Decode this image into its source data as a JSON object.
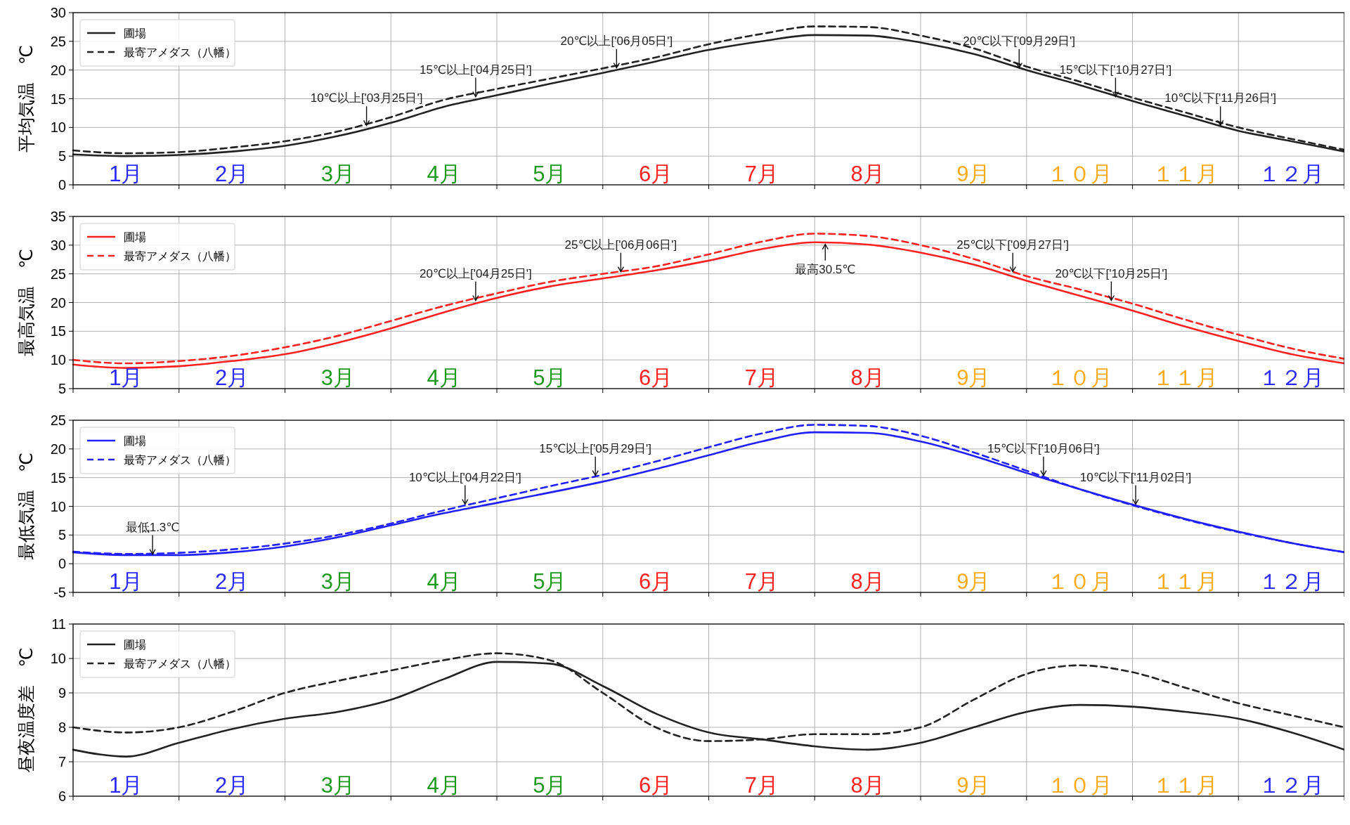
{
  "chart_data": [
    {
      "type": "line",
      "ylabel": "平均気温　℃",
      "xlim": [
        0,
        12
      ],
      "ylim": [
        0,
        30
      ],
      "yticks": [
        0,
        5,
        10,
        15,
        20,
        25,
        30
      ],
      "xticks": [
        {
          "value": 0,
          "label": null
        },
        {
          "value": 0.5,
          "label": "1月"
        },
        {
          "value": 1,
          "label": null
        },
        {
          "value": 1.5,
          "label": "2月"
        },
        {
          "value": 2,
          "label": null
        },
        {
          "value": 2.5,
          "label": "3月"
        },
        {
          "value": 3,
          "label": null
        },
        {
          "value": 3.5,
          "label": "4月"
        },
        {
          "value": 4,
          "label": null
        },
        {
          "value": 4.5,
          "label": "5月"
        },
        {
          "value": 5,
          "label": null
        },
        {
          "value": 5.5,
          "label": "6月"
        },
        {
          "value": 6,
          "label": null
        },
        {
          "value": 6.5,
          "label": "7月"
        },
        {
          "value": 7,
          "label": null
        },
        {
          "value": 7.5,
          "label": "8月"
        },
        {
          "value": 8,
          "label": null
        },
        {
          "value": 8.5,
          "label": "9月"
        },
        {
          "value": 9,
          "label": null
        },
        {
          "value": 9.5,
          "label": "１０月"
        },
        {
          "value": 10,
          "label": null
        },
        {
          "value": 10.5,
          "label": "１１月"
        },
        {
          "value": 11,
          "label": null
        },
        {
          "value": 11.5,
          "label": "１２月"
        },
        {
          "value": 12,
          "label": null
        }
      ],
      "x": [
        0,
        0.5,
        1,
        1.5,
        2,
        2.5,
        3,
        3.5,
        4,
        4.5,
        5,
        5.5,
        6,
        6.5,
        7,
        7.5,
        8,
        8.5,
        9,
        9.5,
        10,
        10.5,
        11,
        11.5,
        12
      ],
      "grid": true,
      "legend": "top left",
      "series": [
        {
          "name": "圃場",
          "color": "#222222",
          "line_style": "solid",
          "values": [
            5.3,
            5.0,
            5.2,
            5.8,
            6.8,
            8.5,
            10.8,
            13.6,
            15.6,
            17.6,
            19.5,
            21.5,
            23.5,
            25.0,
            26.1,
            26.0,
            24.8,
            22.8,
            20.0,
            17.4,
            14.6,
            12.0,
            9.4,
            7.6,
            5.8
          ]
        },
        {
          "name": "最寄アメダス（八幡）",
          "color": "#222222",
          "line_style": "dashed",
          "values": [
            6.0,
            5.5,
            5.7,
            6.5,
            7.6,
            9.3,
            11.8,
            14.8,
            16.7,
            18.5,
            20.3,
            22.2,
            24.5,
            26.3,
            27.6,
            27.5,
            26.0,
            23.8,
            20.6,
            18.0,
            15.2,
            12.6,
            10.0,
            8.0,
            6.1
          ]
        }
      ],
      "annotations": [
        {
          "text": "10℃以上['03月25日']",
          "x": 2.77,
          "y": 10
        },
        {
          "text": "15℃以上['04月25日']",
          "x": 3.8,
          "y": 15
        },
        {
          "text": "20℃以上['06月05日']",
          "x": 5.13,
          "y": 20
        },
        {
          "text": "20℃以下['09月29日']",
          "x": 8.93,
          "y": 20
        },
        {
          "text": "15℃以下['10月27日']",
          "x": 9.84,
          "y": 15
        },
        {
          "text": "10℃以下['11月26日']",
          "x": 10.83,
          "y": 10
        }
      ]
    },
    {
      "type": "line",
      "ylabel": "最高気温　℃",
      "xlim": [
        0,
        12
      ],
      "ylim": [
        5,
        35
      ],
      "yticks": [
        5,
        10,
        15,
        20,
        25,
        30,
        35
      ],
      "xticks": [
        {
          "value": 0,
          "label": null
        },
        {
          "value": 0.5,
          "label": "1月"
        },
        {
          "value": 1,
          "label": null
        },
        {
          "value": 1.5,
          "label": "2月"
        },
        {
          "value": 2,
          "label": null
        },
        {
          "value": 2.5,
          "label": "3月"
        },
        {
          "value": 3,
          "label": null
        },
        {
          "value": 3.5,
          "label": "4月"
        },
        {
          "value": 4,
          "label": null
        },
        {
          "value": 4.5,
          "label": "5月"
        },
        {
          "value": 5,
          "label": null
        },
        {
          "value": 5.5,
          "label": "6月"
        },
        {
          "value": 6,
          "label": null
        },
        {
          "value": 6.5,
          "label": "7月"
        },
        {
          "value": 7,
          "label": null
        },
        {
          "value": 7.5,
          "label": "8月"
        },
        {
          "value": 8,
          "label": null
        },
        {
          "value": 8.5,
          "label": "9月"
        },
        {
          "value": 9,
          "label": null
        },
        {
          "value": 9.5,
          "label": "１０月"
        },
        {
          "value": 10,
          "label": null
        },
        {
          "value": 10.5,
          "label": "１１月"
        },
        {
          "value": 11,
          "label": null
        },
        {
          "value": 11.5,
          "label": "１２月"
        },
        {
          "value": 12,
          "label": null
        }
      ],
      "x": [
        0,
        0.5,
        1,
        1.5,
        2,
        2.5,
        3,
        3.5,
        4,
        4.5,
        5,
        5.5,
        6,
        6.5,
        7,
        7.5,
        8,
        8.5,
        9,
        9.5,
        10,
        10.5,
        11,
        11.5,
        12
      ],
      "grid": true,
      "legend": "top left",
      "series": [
        {
          "name": "圃場",
          "color": "#ff2020",
          "line_style": "solid",
          "values": [
            9.2,
            8.6,
            8.9,
            9.8,
            11.0,
            13.0,
            15.5,
            18.3,
            20.8,
            22.8,
            24.2,
            25.6,
            27.3,
            29.3,
            30.5,
            30.1,
            28.7,
            26.6,
            23.8,
            21.2,
            18.6,
            15.8,
            13.3,
            11.0,
            9.4
          ]
        },
        {
          "name": "最寄アメダス（八幡）",
          "color": "#ff2020",
          "line_style": "dashed",
          "values": [
            10.0,
            9.4,
            9.8,
            10.7,
            12.2,
            14.2,
            16.8,
            19.4,
            21.6,
            23.6,
            25.0,
            26.3,
            28.4,
            30.6,
            32.0,
            31.6,
            30.0,
            27.6,
            24.6,
            22.3,
            19.8,
            17.0,
            14.4,
            12.0,
            10.2
          ]
        }
      ],
      "annotations": [
        {
          "text": "20℃以上['04月25日']",
          "x": 3.8,
          "y": 20
        },
        {
          "text": "25℃以上['06月06日']",
          "x": 5.17,
          "y": 25
        },
        {
          "text": "最高30.5℃",
          "x": 7.1,
          "y": 30.5
        },
        {
          "text": "25℃以下['09月27日']",
          "x": 8.87,
          "y": 25
        },
        {
          "text": "20℃以下['10月25日']",
          "x": 9.8,
          "y": 20
        }
      ]
    },
    {
      "type": "line",
      "ylabel": "最低気温　℃",
      "xlim": [
        0,
        12
      ],
      "ylim": [
        -5,
        25
      ],
      "yticks": [
        -5,
        0,
        5,
        10,
        15,
        20,
        25
      ],
      "xticks": [
        {
          "value": 0,
          "label": null
        },
        {
          "value": 0.5,
          "label": "1月"
        },
        {
          "value": 1,
          "label": null
        },
        {
          "value": 1.5,
          "label": "2月"
        },
        {
          "value": 2,
          "label": null
        },
        {
          "value": 2.5,
          "label": "3月"
        },
        {
          "value": 3,
          "label": null
        },
        {
          "value": 3.5,
          "label": "4月"
        },
        {
          "value": 4,
          "label": null
        },
        {
          "value": 4.5,
          "label": "5月"
        },
        {
          "value": 5,
          "label": null
        },
        {
          "value": 5.5,
          "label": "6月"
        },
        {
          "value": 6,
          "label": null
        },
        {
          "value": 6.5,
          "label": "7月"
        },
        {
          "value": 7,
          "label": null
        },
        {
          "value": 7.5,
          "label": "8月"
        },
        {
          "value": 8,
          "label": null
        },
        {
          "value": 8.5,
          "label": "9月"
        },
        {
          "value": 9,
          "label": null
        },
        {
          "value": 9.5,
          "label": "１０月"
        },
        {
          "value": 10,
          "label": null
        },
        {
          "value": 10.5,
          "label": "１１月"
        },
        {
          "value": 11,
          "label": null
        },
        {
          "value": 11.5,
          "label": "１２月"
        },
        {
          "value": 12,
          "label": null
        }
      ],
      "x": [
        0,
        0.5,
        1,
        1.5,
        2,
        2.5,
        3,
        3.5,
        4,
        4.5,
        5,
        5.5,
        6,
        6.5,
        7,
        7.5,
        8,
        8.5,
        9,
        9.5,
        10,
        10.5,
        11,
        11.5,
        12
      ],
      "grid": true,
      "legend": "top left",
      "series": [
        {
          "name": "圃場",
          "color": "#2020ff",
          "line_style": "solid",
          "values": [
            2.0,
            1.5,
            1.5,
            2.0,
            3.0,
            4.6,
            6.7,
            8.8,
            10.6,
            12.4,
            14.3,
            16.5,
            18.9,
            21.3,
            22.9,
            22.8,
            21.3,
            18.8,
            15.8,
            13.0,
            10.3,
            7.8,
            5.6,
            3.6,
            2.0
          ]
        },
        {
          "name": "最寄アメダス（八幡）",
          "color": "#2020ff",
          "line_style": "dashed",
          "values": [
            2.1,
            1.7,
            1.9,
            2.5,
            3.5,
            5.0,
            7.0,
            9.3,
            11.4,
            13.5,
            15.5,
            17.8,
            20.3,
            22.7,
            24.2,
            24.0,
            22.3,
            19.4,
            16.2,
            13.0,
            10.2,
            7.7,
            5.5,
            3.6,
            2.0
          ]
        }
      ],
      "annotations": [
        {
          "text": "最低1.3℃",
          "x": 0.75,
          "y": 1.3
        },
        {
          "text": "10℃以上['04月22日']",
          "x": 3.7,
          "y": 10
        },
        {
          "text": "15℃以上['05月29日']",
          "x": 4.93,
          "y": 15
        },
        {
          "text": "15℃以下['10月06日']",
          "x": 9.16,
          "y": 15
        },
        {
          "text": "10℃以下['11月02日']",
          "x": 10.03,
          "y": 10
        }
      ]
    },
    {
      "type": "line",
      "ylabel": "昼夜温度差　℃",
      "xlim": [
        0,
        12
      ],
      "ylim": [
        6,
        11
      ],
      "yticks": [
        6,
        7,
        8,
        9,
        10,
        11
      ],
      "xticks": [
        {
          "value": 0,
          "label": null
        },
        {
          "value": 0.5,
          "label": "1月"
        },
        {
          "value": 1,
          "label": null
        },
        {
          "value": 1.5,
          "label": "2月"
        },
        {
          "value": 2,
          "label": null
        },
        {
          "value": 2.5,
          "label": "3月"
        },
        {
          "value": 3,
          "label": null
        },
        {
          "value": 3.5,
          "label": "4月"
        },
        {
          "value": 4,
          "label": null
        },
        {
          "value": 4.5,
          "label": "5月"
        },
        {
          "value": 5,
          "label": null
        },
        {
          "value": 5.5,
          "label": "6月"
        },
        {
          "value": 6,
          "label": null
        },
        {
          "value": 6.5,
          "label": "7月"
        },
        {
          "value": 7,
          "label": null
        },
        {
          "value": 7.5,
          "label": "8月"
        },
        {
          "value": 8,
          "label": null
        },
        {
          "value": 8.5,
          "label": "9月"
        },
        {
          "value": 9,
          "label": null
        },
        {
          "value": 9.5,
          "label": "１０月"
        },
        {
          "value": 10,
          "label": null
        },
        {
          "value": 10.5,
          "label": "１１月"
        },
        {
          "value": 11,
          "label": null
        },
        {
          "value": 11.5,
          "label": "１２月"
        },
        {
          "value": 12,
          "label": null
        }
      ],
      "x": [
        0,
        0.5,
        1,
        1.5,
        2,
        2.5,
        3,
        3.5,
        4,
        4.5,
        5,
        5.5,
        6,
        6.5,
        7,
        7.5,
        8,
        8.5,
        9,
        9.5,
        10,
        10.5,
        11,
        11.5,
        12
      ],
      "grid": true,
      "legend": "top left",
      "series": [
        {
          "name": "圃場",
          "color": "#222222",
          "line_style": "solid",
          "values": [
            7.35,
            7.15,
            7.55,
            7.95,
            8.25,
            8.45,
            8.8,
            9.4,
            9.9,
            9.85,
            9.2,
            8.4,
            7.85,
            7.65,
            7.45,
            7.35,
            7.55,
            8.0,
            8.45,
            8.65,
            8.6,
            8.45,
            8.25,
            7.85,
            7.35
          ]
        },
        {
          "name": "最寄アメダス（八幡）",
          "color": "#222222",
          "line_style": "dashed",
          "values": [
            8.0,
            7.85,
            8.0,
            8.45,
            9.0,
            9.35,
            9.65,
            9.95,
            10.15,
            9.95,
            9.0,
            8.0,
            7.6,
            7.65,
            7.8,
            7.8,
            8.0,
            8.8,
            9.55,
            9.8,
            9.6,
            9.15,
            8.7,
            8.35,
            8.0
          ]
        }
      ]
    }
  ]
}
